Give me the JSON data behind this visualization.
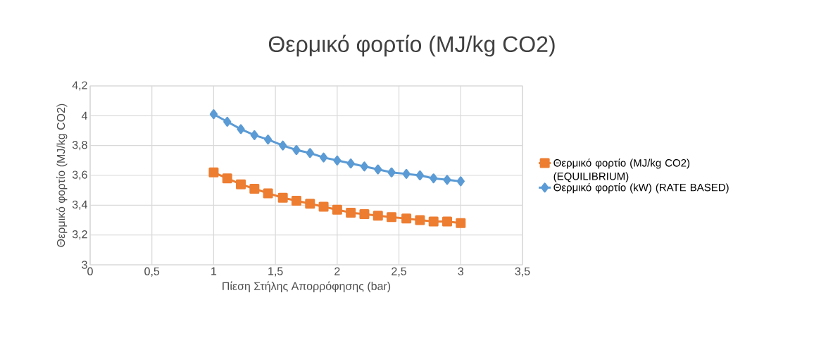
{
  "chart_data": {
    "type": "line",
    "title": "Θερμικό φορτίο (MJ/kg CO2)",
    "xlabel": "Πίεση Στήλης Απορρόφησης (bar)",
    "ylabel": "Θερμικό φορτίο (MJ/kg CO2)",
    "x": [
      1,
      1.11,
      1.22,
      1.33,
      1.44,
      1.56,
      1.67,
      1.78,
      1.89,
      2,
      2.11,
      2.22,
      2.33,
      2.44,
      2.56,
      2.67,
      2.78,
      2.89,
      3
    ],
    "series": [
      {
        "name": "Θερμικό φορτίο (MJ/kg CO2) (EQUILIBRIUM)",
        "color": "#ed7d31",
        "marker": "square",
        "values": [
          3.62,
          3.58,
          3.54,
          3.51,
          3.48,
          3.45,
          3.43,
          3.41,
          3.39,
          3.37,
          3.35,
          3.34,
          3.33,
          3.32,
          3.31,
          3.3,
          3.29,
          3.29,
          3.28
        ]
      },
      {
        "name": "Θερμικό φορτίο (kW) (RATE BASED)",
        "color": "#5b9bd5",
        "marker": "diamond",
        "values": [
          4.01,
          3.96,
          3.91,
          3.87,
          3.84,
          3.8,
          3.77,
          3.75,
          3.72,
          3.7,
          3.68,
          3.66,
          3.64,
          3.62,
          3.61,
          3.6,
          3.58,
          3.57,
          3.56
        ]
      }
    ],
    "xlim": [
      0,
      3.5
    ],
    "xticks": [
      0,
      {
        "value": 0.5,
        "label": "0,5"
      },
      1,
      {
        "value": 1.5,
        "label": "1,5"
      },
      2,
      {
        "value": 2.5,
        "label": "2,5"
      },
      3,
      {
        "value": 3.5,
        "label": "3,5"
      }
    ],
    "ylim": [
      3,
      4.2
    ],
    "yticks": [
      3,
      {
        "value": 3.2,
        "label": "3,2"
      },
      {
        "value": 3.4,
        "label": "3,4"
      },
      {
        "value": 3.6,
        "label": "3,6"
      },
      {
        "value": 3.8,
        "label": "3,8"
      },
      4,
      {
        "value": 4.2,
        "label": "4,2"
      }
    ],
    "grid": true,
    "legend": "right",
    "line_style": "solid"
  }
}
